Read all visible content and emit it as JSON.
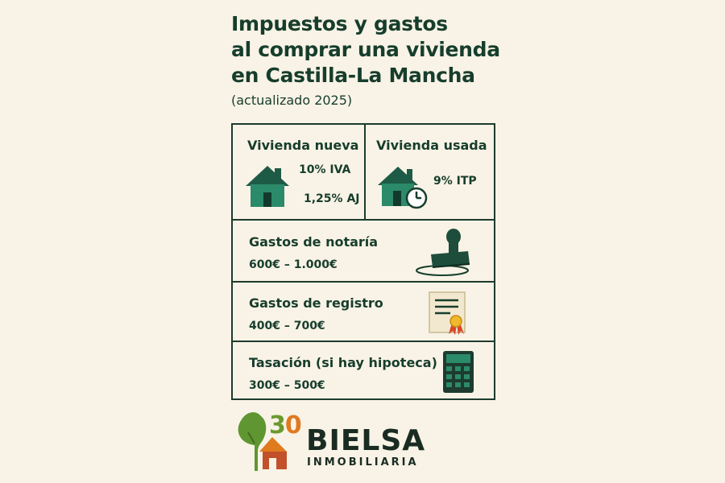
{
  "header": {
    "title_lines": [
      "Impuestos y gastos",
      "al comprar una vivienda",
      "en Castilla-La Mancha"
    ],
    "subtitle": "(actualizado 2025)"
  },
  "taxes": {
    "new_home": {
      "title": "Vivienda nueva",
      "line1": "10% IVA",
      "line2": "1,25% AJ",
      "icon": "house-icon"
    },
    "used_home": {
      "title": "Vivienda usada",
      "line1": "9% ITP",
      "icon": "house-clock-icon"
    }
  },
  "costs": [
    {
      "title": "Gastos de notaría",
      "price": "600€ – 1.000€",
      "icon": "stamp-icon"
    },
    {
      "title": "Gastos de registro",
      "price": "400€ – 700€",
      "icon": "certificate-icon"
    },
    {
      "title": "Tasación (si hay hipoteca)",
      "price": "300€ – 500€",
      "icon": "calculator-icon"
    }
  ],
  "logo": {
    "digit1": "3",
    "digit2": "0",
    "name": "BIELSA",
    "sub": "INMOBILIARIA"
  },
  "colors": {
    "background": "#f8f3e6",
    "text": "#173d2c",
    "house_green": "#2b8a6a",
    "border": "#1d3b2e"
  }
}
